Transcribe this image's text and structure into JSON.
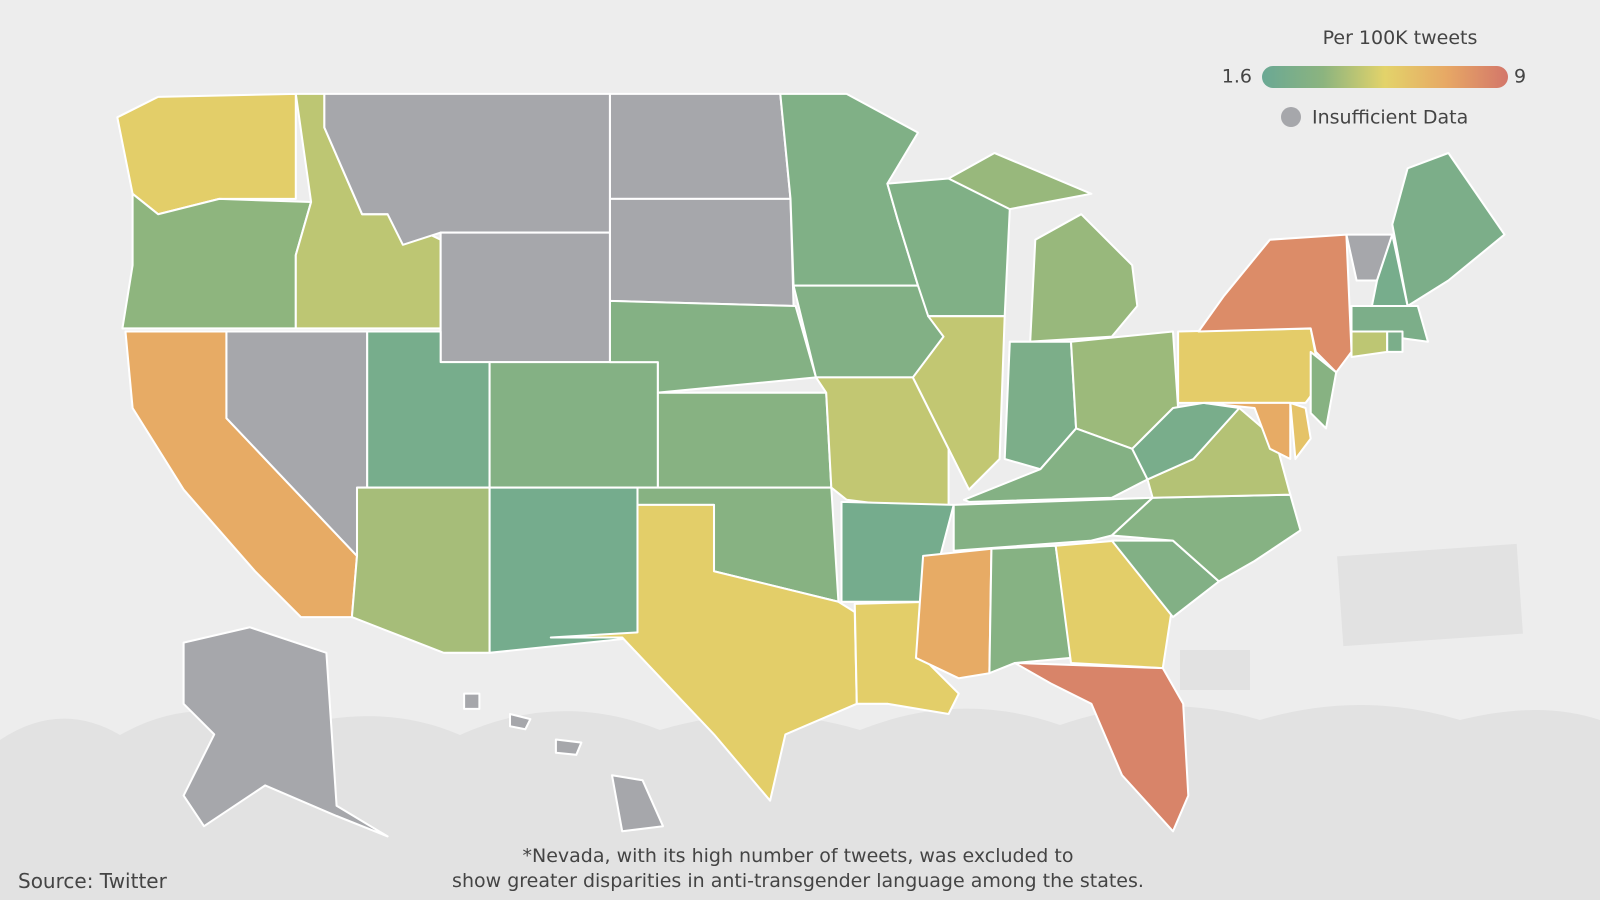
{
  "legend": {
    "title": "Per 100K tweets",
    "min": 1.6,
    "max": 9,
    "no_data_label": "Insufficient Data"
  },
  "scale": {
    "colors": [
      "#6aa894",
      "#8cb47f",
      "#e3d36a",
      "#e7a865",
      "#d3766a"
    ],
    "no_data_color": "#a6a7ab"
  },
  "regions": [
    {
      "value": 5.5
    },
    {
      "value": 3.5
    },
    {
      "value": 4.5
    },
    {
      "value": null
    },
    {
      "value": null
    },
    {
      "value": null
    },
    {
      "value": null
    },
    {
      "value": 7
    },
    {
      "value": null
    },
    {
      "value": 2.3
    },
    {
      "value": 3
    },
    {
      "value": 4
    },
    {
      "value": 2.2
    },
    {
      "value": 3
    },
    {
      "value": 3.2
    },
    {
      "value": 3.2
    },
    {
      "value": 5.5
    },
    {
      "value": 2.8
    },
    {
      "value": 2.9
    },
    {
      "value": 4.6
    },
    {
      "value": 2.2
    },
    {
      "value": 5.5
    },
    {
      "value": 2.8
    },
    {
      "value": 4.6
    },
    {
      "value": 3.7
    },
    {
      "value": 2.6
    },
    {
      "value": 3.8
    },
    {
      "value": 3
    },
    {
      "value": 3
    },
    {
      "value": 7
    },
    {
      "value": 3.1
    },
    {
      "value": 5.5
    },
    {
      "value": 8.5
    },
    {
      "value": 2.9
    },
    {
      "value": 3.1
    },
    {
      "value": 4.3
    },
    {
      "value": 2.4
    },
    {
      "value": 5.6
    },
    {
      "value": 8.2
    },
    {
      "value": 3.2
    },
    {
      "value": 7
    },
    {
      "value": 6
    },
    {
      "value": 2.6
    },
    {
      "value": null
    },
    {
      "value": 2.3
    },
    {
      "value": 2.6
    },
    {
      "value": 4.5
    },
    {
      "value": 2.5
    },
    {
      "value": null
    },
    {
      "value": null
    }
  ],
  "note": [
    "*Nevada, with its high number of tweets, was excluded to",
    "show greater disparities in anti-transgender language among the states."
  ],
  "source": "Source: Twitter"
}
